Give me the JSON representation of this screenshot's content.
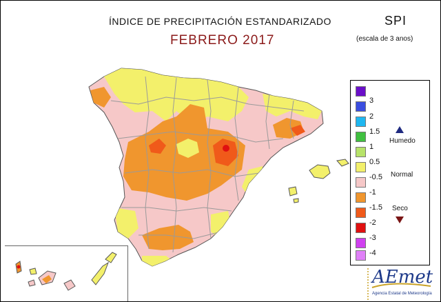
{
  "header": {
    "title": "ÍNDICE DE PRECIPITACIÓN ESTANDARIZADO",
    "period": "FEBRERO 2017",
    "index_name": "SPI",
    "scale_note": "(escala de 3 anos)"
  },
  "legend": {
    "levels": [
      {
        "label": "3",
        "color": "#6a0fc9"
      },
      {
        "label": "2",
        "color": "#3b4ee0"
      },
      {
        "label": "1.5",
        "color": "#1fb7f0"
      },
      {
        "label": "1",
        "color": "#40c040"
      },
      {
        "label": "0.5",
        "color": "#b7e36a"
      },
      {
        "label": "-0.5",
        "color": "#f3f06b"
      },
      {
        "label": "-1",
        "color": "#f6c8c8"
      },
      {
        "label": "-1.5",
        "color": "#f0962e"
      },
      {
        "label": "-2",
        "color": "#f05a1a"
      },
      {
        "label": "-3",
        "color": "#e01010"
      },
      {
        "label": "-4",
        "color": "#d040f0"
      },
      {
        "label": "",
        "color": "#e080f8"
      }
    ],
    "categories": {
      "wet": "Humedo",
      "normal": "Normal",
      "dry": "Seco"
    },
    "wet_color": "#1f2a80",
    "dry_color": "#7a1515"
  },
  "logo": {
    "wordmark": "AEmet",
    "subtitle": "Agencia Estatal de Meteorología"
  },
  "map_colors": {
    "normal": "#f6c8c8",
    "wet": "#f3f06b",
    "dry": "#f0962e",
    "very_dry": "#f05a1a",
    "extreme_dry": "#e01010",
    "borders": "#9a9a9a"
  }
}
